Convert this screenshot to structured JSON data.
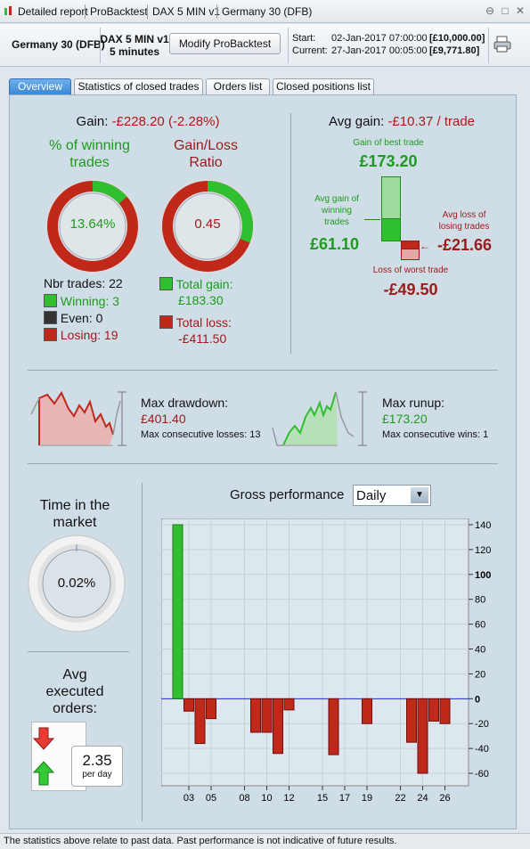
{
  "titlebar": {
    "items": [
      "Detailed report",
      "ProBacktest",
      "DAX 5 MIN v1",
      "Germany 30 (DFB)"
    ]
  },
  "header": {
    "instrument": "Germany 30 (DFB)",
    "strategy": "DAX 5 MIN v1",
    "timeframe": "5 minutes",
    "modify_button": "Modify ProBacktest",
    "start_label": "Start:",
    "start_date": "02-Jan-2017 07:00:00",
    "start_value": "[£10,000.00]",
    "current_label": "Current:",
    "current_date": "27-Jan-2017 00:05:00",
    "current_value": "[£9,771.80]"
  },
  "tabs": [
    "Overview",
    "Statistics of closed trades",
    "Orders list",
    "Closed positions list"
  ],
  "gain": {
    "label": "Gain:",
    "value": "-£228.20 (-2.28%)"
  },
  "winning": {
    "title_line1": "% of winning",
    "title_line2": "trades",
    "value": "13.64%",
    "fraction": 0.1364
  },
  "ratio": {
    "title_line1": "Gain/Loss",
    "title_line2": "Ratio",
    "value": "0.45",
    "fraction": 0.308
  },
  "trades": {
    "nbr": "Nbr trades: 22",
    "winning": "Winning: 3",
    "even": "Even: 0",
    "losing": "Losing: 19"
  },
  "totals": {
    "gain_label": "Total gain:",
    "gain_value": "£183.30",
    "loss_label": "Total loss:",
    "loss_value": "-£411.50"
  },
  "avg": {
    "label": "Avg gain:",
    "value": "-£10.37 / trade",
    "best_label": "Gain of best trade",
    "best_value": "£173.20",
    "avg_win_label_1": "Avg gain of",
    "avg_win_label_2": "winning",
    "avg_win_label_3": "trades",
    "avg_win_value": "£61.10",
    "avg_loss_label_1": "Avg loss of",
    "avg_loss_label_2": "losing trades",
    "avg_loss_value": "-£21.66",
    "worst_label": "Loss of worst trade",
    "worst_value": "-£49.50"
  },
  "drawdown": {
    "label": "Max drawdown:",
    "value": "£401.40",
    "consec": "Max consecutive losses: 13"
  },
  "runup": {
    "label": "Max runup:",
    "value": "£173.20",
    "consec": "Max consecutive wins: 1"
  },
  "market": {
    "title_line1": "Time in the",
    "title_line2": "market",
    "value": "0.02%"
  },
  "orders": {
    "title_line1": "Avg",
    "title_line2": "executed",
    "title_line3": "orders:",
    "value": "2.35",
    "unit": "per day"
  },
  "perf": {
    "title": "Gross performance",
    "period": "Daily"
  },
  "colors": {
    "green": "#2fbf2f",
    "red": "#c0281a",
    "tab_active": "#3d86d6"
  },
  "chart_data": {
    "type": "bar",
    "title": "Gross performance",
    "x_ticks": [
      "03",
      "05",
      "08",
      "10",
      "12",
      "15",
      "17",
      "19",
      "22",
      "24",
      "26"
    ],
    "ylim": [
      -70,
      145
    ],
    "y_ticks": [
      140,
      120,
      100,
      80,
      60,
      40,
      20,
      0,
      -20,
      -40,
      -60
    ],
    "grid": true,
    "bars": [
      {
        "x": 2,
        "value": 140
      },
      {
        "x": 3,
        "value": -10
      },
      {
        "x": 4,
        "value": -36
      },
      {
        "x": 5,
        "value": -16
      },
      {
        "x": 9,
        "value": -27
      },
      {
        "x": 10,
        "value": -27
      },
      {
        "x": 11,
        "value": -44
      },
      {
        "x": 12,
        "value": -9
      },
      {
        "x": 16,
        "value": -45
      },
      {
        "x": 19,
        "value": -20
      },
      {
        "x": 23,
        "value": -35
      },
      {
        "x": 24,
        "value": -60
      },
      {
        "x": 25,
        "value": -18
      },
      {
        "x": 26,
        "value": -20
      }
    ]
  },
  "status": "The statistics above relate to past data. Past performance is not indicative of future results."
}
